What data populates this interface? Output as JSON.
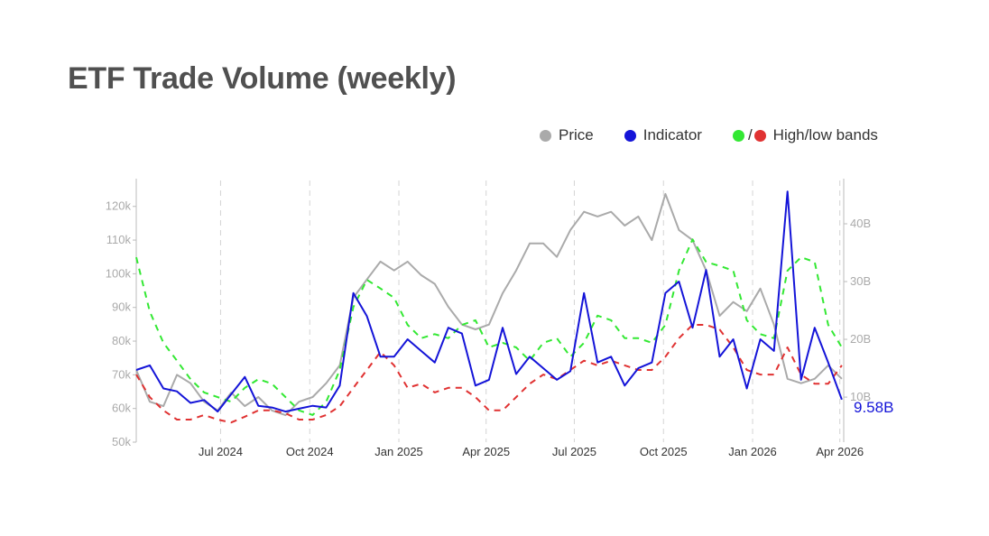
{
  "title": "ETF Trade Volume (weekly)",
  "legend": {
    "price": "Price",
    "indicator": "Indicator",
    "bands_sep": "/",
    "bands": "High/low bands"
  },
  "colors": {
    "price": "#aaaaaa",
    "indicator": "#1414d8",
    "high_band": "#33e833",
    "low_band": "#e03232",
    "title": "#505050"
  },
  "chart_data": {
    "type": "line",
    "title": "ETF Trade Volume (weekly)",
    "xlim": [
      "2024-04-05",
      "2026-04-05"
    ],
    "x_ticks": [
      {
        "date": "2024-07-01",
        "label": "Jul 2024"
      },
      {
        "date": "2024-10-01",
        "label": "Oct 2024"
      },
      {
        "date": "2025-01-01",
        "label": "Jan 2025"
      },
      {
        "date": "2025-04-01",
        "label": "Apr 2025"
      },
      {
        "date": "2025-07-01",
        "label": "Jul 2025"
      },
      {
        "date": "2025-10-01",
        "label": "Oct 2025"
      },
      {
        "date": "2026-01-01",
        "label": "Jan 2026"
      },
      {
        "date": "2026-04-01",
        "label": "Apr 2026"
      }
    ],
    "y_left": {
      "lim": [
        50,
        127.7
      ],
      "unit": "k",
      "ticks": [
        {
          "v": 50,
          "label": "50k"
        },
        {
          "v": 60,
          "label": "60k"
        },
        {
          "v": 70,
          "label": "70k"
        },
        {
          "v": 80,
          "label": "80k"
        },
        {
          "v": 90,
          "label": "90k"
        },
        {
          "v": 100,
          "label": "100k"
        },
        {
          "v": 110,
          "label": "110k"
        },
        {
          "v": 120,
          "label": "120k"
        }
      ]
    },
    "y_right": {
      "lim": [
        2.2,
        47.5
      ],
      "unit": "B",
      "ticks": [
        {
          "v": 10,
          "label": "10B"
        },
        {
          "v": 20,
          "label": "20B"
        },
        {
          "v": 30,
          "label": "30B"
        },
        {
          "v": 40,
          "label": "40B"
        }
      ]
    },
    "grid": "vertical dashed at x ticks",
    "legend_position": "top-right",
    "last_value_label": "9.58B",
    "dates": [
      "2024-04-05",
      "2024-04-19",
      "2024-05-03",
      "2024-05-17",
      "2024-05-31",
      "2024-06-14",
      "2024-06-28",
      "2024-07-12",
      "2024-07-26",
      "2024-08-09",
      "2024-08-23",
      "2024-09-06",
      "2024-09-20",
      "2024-10-04",
      "2024-10-18",
      "2024-11-01",
      "2024-11-15",
      "2024-11-29",
      "2024-12-13",
      "2024-12-27",
      "2025-01-10",
      "2025-01-24",
      "2025-02-07",
      "2025-02-21",
      "2025-03-07",
      "2025-03-21",
      "2025-04-04",
      "2025-04-18",
      "2025-05-02",
      "2025-05-16",
      "2025-05-30",
      "2025-06-13",
      "2025-06-27",
      "2025-07-11",
      "2025-07-25",
      "2025-08-08",
      "2025-08-22",
      "2025-09-05",
      "2025-09-19",
      "2025-10-03",
      "2025-10-17",
      "2025-10-31",
      "2025-11-14",
      "2025-11-28",
      "2025-12-12",
      "2025-12-26",
      "2026-01-09",
      "2026-01-23",
      "2026-02-06",
      "2026-02-20",
      "2026-03-06",
      "2026-03-20",
      "2026-04-03"
    ],
    "series": [
      {
        "name": "Price",
        "axis": "left",
        "style": "solid",
        "values": [
          71.4,
          62,
          60.7,
          70,
          67.5,
          62,
          59.4,
          64.7,
          60.7,
          63.4,
          59.4,
          58,
          62,
          63.4,
          67.5,
          72.8,
          92.9,
          98.3,
          103.6,
          101,
          103.6,
          99.6,
          97,
          90.2,
          84.9,
          83.5,
          84.9,
          94.2,
          101,
          109,
          109,
          105,
          113,
          118.4,
          117,
          118.4,
          114.3,
          117,
          110,
          123.7,
          113,
          110,
          101,
          87.5,
          91.6,
          88.9,
          95.6,
          84.9,
          68.8,
          67.5,
          68.8,
          72.8,
          68.8
        ]
      },
      {
        "name": "Indicator",
        "axis": "right",
        "style": "solid",
        "values": [
          14.7,
          15.5,
          11.5,
          11,
          9,
          9.5,
          7.5,
          10.5,
          13.5,
          8.5,
          8.2,
          7.5,
          8,
          8.5,
          8.2,
          12,
          28,
          24,
          17,
          17,
          20,
          18,
          16,
          22,
          21,
          12,
          13,
          22,
          14,
          17,
          15,
          13,
          14.5,
          28,
          16,
          17,
          12,
          15,
          16,
          28,
          30,
          22,
          32,
          17,
          20,
          11.5,
          20,
          18,
          45.6,
          13,
          22,
          16,
          9.58
        ]
      },
      {
        "name": "High band",
        "axis": "right",
        "style": "dashed",
        "values": [
          34.2,
          24.8,
          19.4,
          16.3,
          13.1,
          10.8,
          10,
          9.2,
          11.6,
          13.1,
          12.3,
          10,
          7.7,
          6.9,
          9.2,
          14.7,
          25.6,
          30.3,
          28.8,
          27.2,
          22.5,
          20.2,
          20.9,
          20.2,
          22.5,
          23.3,
          18.6,
          19.4,
          18.6,
          16.3,
          19.4,
          20.2,
          17,
          19.4,
          24.1,
          23.3,
          20.2,
          20.2,
          19.4,
          22.5,
          31.9,
          37.3,
          33.4,
          32.7,
          31.9,
          23.3,
          20.9,
          20.2,
          31.9,
          34.2,
          33.4,
          22.5,
          18.6
        ]
      },
      {
        "name": "Low band",
        "axis": "right",
        "style": "dashed",
        "values": [
          13.9,
          10,
          7.7,
          6.1,
          6.1,
          6.9,
          6.1,
          5.6,
          6.6,
          7.7,
          7.7,
          7.2,
          6.1,
          6.1,
          6.9,
          8.4,
          11.6,
          14.7,
          17.8,
          15.5,
          11.6,
          12.3,
          10.8,
          11.6,
          11.6,
          10,
          7.7,
          7.7,
          10,
          12.3,
          13.9,
          13.1,
          14.7,
          16.3,
          15.5,
          16.3,
          15.5,
          14.7,
          14.7,
          17,
          20.2,
          22.5,
          22.5,
          21.7,
          18.6,
          14.7,
          13.9,
          13.9,
          18.6,
          13.9,
          12.3,
          12.3,
          15.5
        ]
      }
    ]
  }
}
